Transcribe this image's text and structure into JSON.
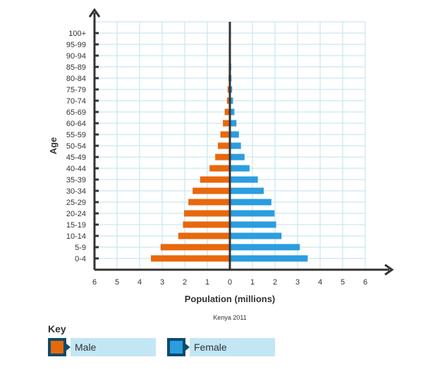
{
  "chart_data": {
    "type": "bar",
    "orientation": "horizontal",
    "subtype": "population-pyramid",
    "caption": "Kenya 2011",
    "xlabel": "Population (millions)",
    "ylabel": "Age",
    "xlim": [
      -6,
      6
    ],
    "x_tick_labels": [
      "6",
      "5",
      "4",
      "3",
      "2",
      "1",
      "0",
      "1",
      "2",
      "3",
      "4",
      "5",
      "6"
    ],
    "grid": true,
    "categories": [
      "0-4",
      "5-9",
      "10-14",
      "15-19",
      "20-24",
      "25-29",
      "30-34",
      "35-39",
      "40-44",
      "45-49",
      "50-54",
      "55-59",
      "60-64",
      "65-69",
      "70-74",
      "75-79",
      "80-84",
      "85-89",
      "90-94",
      "95-99",
      "100+"
    ],
    "series": [
      {
        "name": "Male",
        "color": "#e8680c",
        "side": "left",
        "values": [
          3.5,
          3.07,
          2.29,
          2.08,
          2.03,
          1.84,
          1.65,
          1.32,
          0.9,
          0.65,
          0.53,
          0.42,
          0.31,
          0.23,
          0.13,
          0.1,
          0.06,
          0.05,
          0.03,
          0.01,
          0
        ]
      },
      {
        "name": "Female",
        "color": "#2b9de0",
        "side": "right",
        "values": [
          3.45,
          3.1,
          2.29,
          2.05,
          1.98,
          1.84,
          1.5,
          1.24,
          0.87,
          0.65,
          0.49,
          0.4,
          0.29,
          0.2,
          0.14,
          0.1,
          0.07,
          0.06,
          0.04,
          0.03,
          0
        ]
      }
    ],
    "legend": {
      "title": "Key",
      "position": "bottom-left"
    }
  }
}
